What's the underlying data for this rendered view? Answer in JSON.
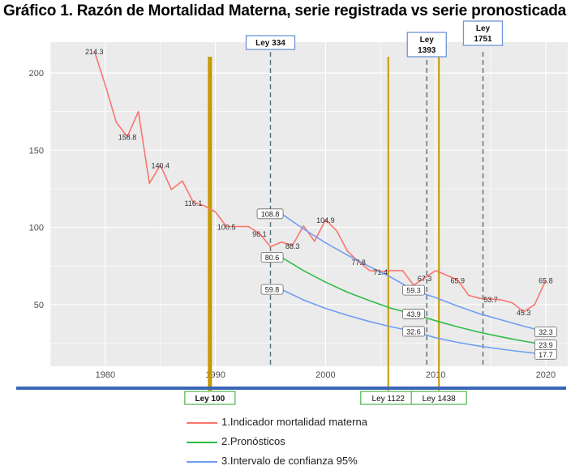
{
  "title": "Gráfico 1. Razón de Mortalidad Materna, serie registrada vs serie pronosticada",
  "colors": {
    "panel_bg": "#ebebeb",
    "grid": "#ffffff",
    "observed": "#f8766d",
    "forecast": "#2ebd47",
    "confidence": "#6f9ef2",
    "law_gold": "#c49a00",
    "law_dashed": "#5e7586",
    "label_box_green": "#5cb85c",
    "label_box_blue": "#6f93d6",
    "baseline": "#3a66b7"
  },
  "chart_data": {
    "type": "line",
    "title": "Gráfico 1. Razón de Mortalidad Materna, serie registrada vs serie pronosticada",
    "xlabel": "",
    "ylabel": "",
    "xlim": [
      1975,
      2022
    ],
    "ylim": [
      10,
      220
    ],
    "x_ticks": [
      1980,
      1990,
      2000,
      2010,
      2020
    ],
    "y_ticks": [
      50,
      100,
      150,
      200
    ],
    "grid": true,
    "legend_position": "bottom",
    "series": [
      {
        "name": "1.Indicador mortalidad materna",
        "key": "observed",
        "points": [
          [
            1979,
            214.3
          ],
          [
            1980,
            192
          ],
          [
            1981,
            168
          ],
          [
            1982,
            158.8
          ],
          [
            1983,
            175
          ],
          [
            1984,
            128.5
          ],
          [
            1985,
            140.4
          ],
          [
            1986,
            124.5
          ],
          [
            1987,
            130
          ],
          [
            1988,
            116.1
          ],
          [
            1989,
            114
          ],
          [
            1990,
            110
          ],
          [
            1991,
            100.5
          ],
          [
            1992,
            100.5
          ],
          [
            1993,
            100.5
          ],
          [
            1994,
            96.1
          ],
          [
            1995,
            87.5
          ],
          [
            1996,
            90.5
          ],
          [
            1997,
            88.3
          ],
          [
            1998,
            101
          ],
          [
            1999,
            91
          ],
          [
            2000,
            104.9
          ],
          [
            2001,
            98
          ],
          [
            2002,
            84.5
          ],
          [
            2003,
            77.8
          ],
          [
            2004,
            72
          ],
          [
            2005,
            71.4
          ],
          [
            2006,
            72
          ],
          [
            2007,
            72
          ],
          [
            2008,
            62.5
          ],
          [
            2009,
            67.3
          ],
          [
            2010,
            72
          ],
          [
            2011,
            69
          ],
          [
            2012,
            65.9
          ],
          [
            2013,
            56
          ],
          [
            2014,
            54
          ],
          [
            2015,
            53.7
          ],
          [
            2016,
            53
          ],
          [
            2017,
            51
          ],
          [
            2018,
            45.3
          ],
          [
            2019,
            50
          ],
          [
            2020,
            65.8
          ]
        ]
      },
      {
        "name": "2.Pronósticos",
        "key": "forecast",
        "points": [
          [
            1996,
            80.6
          ],
          [
            1998,
            72
          ],
          [
            2000,
            64.5
          ],
          [
            2002,
            58
          ],
          [
            2004,
            52.5
          ],
          [
            2006,
            47.5
          ],
          [
            2008,
            43.9
          ],
          [
            2010,
            39.5
          ],
          [
            2012,
            35.5
          ],
          [
            2014,
            32
          ],
          [
            2016,
            29
          ],
          [
            2018,
            26.3
          ],
          [
            2020,
            23.9
          ]
        ]
      },
      {
        "name": "3.Intervalo de confianza 95%",
        "key": "upper",
        "points": [
          [
            1996,
            108.8
          ],
          [
            1998,
            99
          ],
          [
            2000,
            90
          ],
          [
            2002,
            82
          ],
          [
            2004,
            74.5
          ],
          [
            2006,
            67.5
          ],
          [
            2008,
            59.3
          ],
          [
            2010,
            54.5
          ],
          [
            2012,
            49
          ],
          [
            2014,
            44
          ],
          [
            2016,
            40
          ],
          [
            2018,
            36
          ],
          [
            2020,
            32.3
          ]
        ]
      },
      {
        "name": "",
        "key": "lower",
        "points": [
          [
            1996,
            59.8
          ],
          [
            1998,
            53
          ],
          [
            2000,
            47.5
          ],
          [
            2002,
            43
          ],
          [
            2004,
            39
          ],
          [
            2006,
            35.5
          ],
          [
            2008,
            32.6
          ],
          [
            2010,
            28.5
          ],
          [
            2012,
            25.5
          ],
          [
            2014,
            23
          ],
          [
            2016,
            21
          ],
          [
            2018,
            19.3
          ],
          [
            2020,
            17.7
          ]
        ]
      }
    ],
    "point_labels": [
      {
        "x": 1979,
        "y": 214.3,
        "text": "214.3"
      },
      {
        "x": 1982,
        "y": 158.8,
        "text": "158.8"
      },
      {
        "x": 1985,
        "y": 140.4,
        "text": "140.4"
      },
      {
        "x": 1988,
        "y": 116.1,
        "text": "116.1"
      },
      {
        "x": 1991,
        "y": 100.5,
        "text": "100.5"
      },
      {
        "x": 1994,
        "y": 96.1,
        "text": "96.1"
      },
      {
        "x": 1997,
        "y": 88.3,
        "text": "88.3"
      },
      {
        "x": 2000,
        "y": 104.9,
        "text": "104.9"
      },
      {
        "x": 2003,
        "y": 77.8,
        "text": "77.8"
      },
      {
        "x": 2005,
        "y": 71.4,
        "text": "71.4"
      },
      {
        "x": 2009,
        "y": 67.3,
        "text": "67.3"
      },
      {
        "x": 2012,
        "y": 65.9,
        "text": "65.9"
      },
      {
        "x": 2015,
        "y": 53.7,
        "text": "53.7"
      },
      {
        "x": 2018,
        "y": 45.3,
        "text": "45.3"
      },
      {
        "x": 2020,
        "y": 65.8,
        "text": "65.8"
      }
    ],
    "boxed_labels": [
      {
        "x": 1996,
        "y": 108.8,
        "text": "108.8",
        "align": "end"
      },
      {
        "x": 1996,
        "y": 80.6,
        "text": "80.6",
        "align": "end"
      },
      {
        "x": 1996,
        "y": 59.8,
        "text": "59.8",
        "align": "end"
      },
      {
        "x": 2008,
        "y": 59.3,
        "text": "59.3",
        "align": "center"
      },
      {
        "x": 2008,
        "y": 43.9,
        "text": "43.9",
        "align": "center"
      },
      {
        "x": 2008,
        "y": 32.6,
        "text": "32.6",
        "align": "center"
      },
      {
        "x": 2020,
        "y": 32.3,
        "text": "32.3",
        "align": "center"
      },
      {
        "x": 2020,
        "y": 23.9,
        "text": "23.9",
        "align": "center"
      },
      {
        "x": 2020,
        "y": 17.7,
        "text": "17.7",
        "align": "center"
      }
    ],
    "laws": [
      {
        "x": 1989.5,
        "text": "Ley 100",
        "style": "gold-thick",
        "label": "bottom"
      },
      {
        "x": 1995.0,
        "text": "Ley 334",
        "style": "dashed",
        "label": "top"
      },
      {
        "x": 2005.7,
        "text": "Ley 1122",
        "style": "gold-thin",
        "label": "bottom"
      },
      {
        "x": 2009.2,
        "text": "Ley\n1393",
        "style": "dashed",
        "label": "top"
      },
      {
        "x": 2010.3,
        "text": "Ley 1438",
        "style": "gold-thin",
        "label": "bottom"
      },
      {
        "x": 2014.3,
        "text": "Ley\n1751",
        "style": "dashed",
        "label": "top"
      }
    ]
  }
}
